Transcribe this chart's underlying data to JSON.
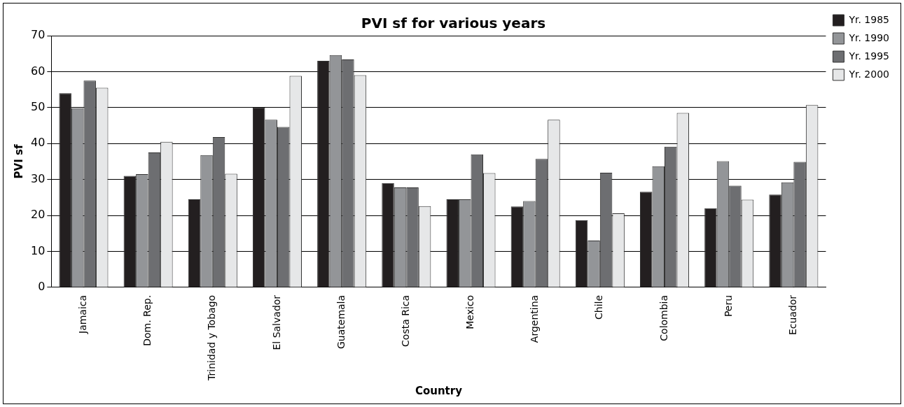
{
  "chart_data": {
    "type": "bar",
    "title": "PVI sf for various years",
    "xlabel": "Country",
    "ylabel": "PVI sf",
    "categories": [
      "Jamaica",
      "Dom. Rep.",
      "Trinidad y Tobago",
      "El Salvador",
      "Guatemala",
      "Costa Rica",
      "Mexico",
      "Argentina",
      "Chile",
      "Colombia",
      "Peru",
      "Ecuador"
    ],
    "series": [
      {
        "name": "Yr. 1985",
        "color": "#231f20",
        "values": [
          54,
          31,
          24.5,
          50,
          63,
          29,
          24.5,
          22.5,
          18.7,
          26.6,
          22,
          25.8
        ]
      },
      {
        "name": "Yr. 1990",
        "color": "#939598",
        "values": [
          49.8,
          31.5,
          36.8,
          46.6,
          64.6,
          27.8,
          24.5,
          24,
          13,
          33.7,
          35.1,
          29.2
        ]
      },
      {
        "name": "Yr. 1995",
        "color": "#6d6e71",
        "values": [
          57.5,
          37.5,
          41.8,
          44.6,
          63.4,
          27.8,
          37,
          35.7,
          31.9,
          39.1,
          28.3,
          34.9
        ]
      },
      {
        "name": "Yr. 2000",
        "color": "#e6e7e8",
        "values": [
          55.5,
          40.5,
          31.6,
          58.8,
          59,
          22.6,
          31.8,
          46.6,
          20.6,
          48.5,
          24.4,
          50.7
        ]
      }
    ],
    "ylim": [
      0,
      70
    ],
    "yticks": [
      0,
      10,
      20,
      30,
      40,
      50,
      60,
      70
    ],
    "grid": "y",
    "legend": "top right"
  }
}
